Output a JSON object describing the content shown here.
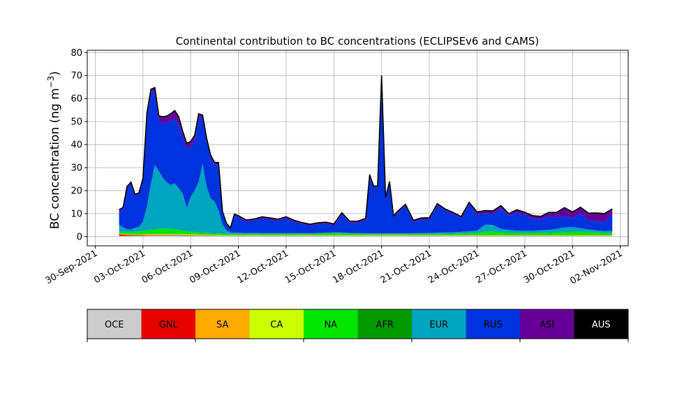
{
  "chart_data": {
    "type": "area",
    "stacked": true,
    "title": "Continental contribution to BC concentrations (ECLIPSEv6 and CAMS)",
    "ylabel_main": "BC concentration (ng m",
    "ylabel_exp": "−3",
    "ylabel_close": ")",
    "ylim": [
      -4,
      81
    ],
    "xlim": [
      "2021-09-29T12:00",
      "2021-11-02T12:00"
    ],
    "yticks": [
      0,
      10,
      20,
      30,
      40,
      50,
      60,
      70,
      80
    ],
    "ytick_labels": [
      "0",
      "10",
      "20",
      "30",
      "40",
      "50",
      "60",
      "70",
      "80"
    ],
    "xticks": [
      "2021-09-30",
      "2021-10-03",
      "2021-10-06",
      "2021-10-09",
      "2021-10-12",
      "2021-10-15",
      "2021-10-18",
      "2021-10-21",
      "2021-10-24",
      "2021-10-27",
      "2021-10-30",
      "2021-11-02"
    ],
    "xtick_labels": [
      "30-Sep-2021",
      "03-Oct-2021",
      "06-Oct-2021",
      "09-Oct-2021",
      "12-Oct-2021",
      "15-Oct-2021",
      "18-Oct-2021",
      "21-Oct-2021",
      "24-Oct-2021",
      "27-Oct-2021",
      "30-Oct-2021",
      "02-Nov-2021"
    ],
    "grid": true,
    "legend_position": "below",
    "series": [
      {
        "name": "OCE",
        "color": "#cccccc"
      },
      {
        "name": "GNL",
        "color": "#e60000"
      },
      {
        "name": "SA",
        "color": "#ffaa00"
      },
      {
        "name": "CA",
        "color": "#ccff00"
      },
      {
        "name": "NA",
        "color": "#00e600"
      },
      {
        "name": "AFR",
        "color": "#009900"
      },
      {
        "name": "EUR",
        "color": "#00a5bf"
      },
      {
        "name": "RUS",
        "color": "#0033dd"
      },
      {
        "name": "ASI",
        "color": "#660099"
      },
      {
        "name": "AUS",
        "color": "#000000"
      }
    ],
    "x": [
      "2021-10-01T12:00",
      "2021-10-01T18:00",
      "2021-10-02T00:00",
      "2021-10-02T06:00",
      "2021-10-02T12:00",
      "2021-10-02T18:00",
      "2021-10-03T00:00",
      "2021-10-03T06:00",
      "2021-10-03T12:00",
      "2021-10-03T18:00",
      "2021-10-04T00:00",
      "2021-10-04T06:00",
      "2021-10-04T12:00",
      "2021-10-04T18:00",
      "2021-10-05T00:00",
      "2021-10-05T06:00",
      "2021-10-05T12:00",
      "2021-10-05T18:00",
      "2021-10-06T00:00",
      "2021-10-06T06:00",
      "2021-10-06T12:00",
      "2021-10-06T18:00",
      "2021-10-07T00:00",
      "2021-10-07T06:00",
      "2021-10-07T12:00",
      "2021-10-07T18:00",
      "2021-10-08T00:00",
      "2021-10-08T06:00",
      "2021-10-08T12:00",
      "2021-10-08T18:00",
      "2021-10-09T00:00",
      "2021-10-09T12:00",
      "2021-10-10T00:00",
      "2021-10-10T12:00",
      "2021-10-11T00:00",
      "2021-10-11T12:00",
      "2021-10-12T00:00",
      "2021-10-12T12:00",
      "2021-10-13T00:00",
      "2021-10-13T12:00",
      "2021-10-14T00:00",
      "2021-10-14T12:00",
      "2021-10-15T00:00",
      "2021-10-15T12:00",
      "2021-10-16T00:00",
      "2021-10-16T12:00",
      "2021-10-17T00:00",
      "2021-10-17T06:00",
      "2021-10-17T12:00",
      "2021-10-17T18:00",
      "2021-10-18T00:00",
      "2021-10-18T06:00",
      "2021-10-18T12:00",
      "2021-10-18T18:00",
      "2021-10-19T00:00",
      "2021-10-19T12:00",
      "2021-10-20T00:00",
      "2021-10-20T12:00",
      "2021-10-21T00:00",
      "2021-10-21T12:00",
      "2021-10-22T00:00",
      "2021-10-22T12:00",
      "2021-10-23T00:00",
      "2021-10-23T12:00",
      "2021-10-24T00:00",
      "2021-10-24T12:00",
      "2021-10-25T00:00",
      "2021-10-25T12:00",
      "2021-10-26T00:00",
      "2021-10-26T12:00",
      "2021-10-27T00:00",
      "2021-10-27T12:00",
      "2021-10-28T00:00",
      "2021-10-28T12:00",
      "2021-10-29T00:00",
      "2021-10-29T12:00",
      "2021-10-30T00:00",
      "2021-10-30T12:00",
      "2021-10-31T00:00",
      "2021-10-31T12:00",
      "2021-11-01T00:00",
      "2021-11-01T12:00"
    ],
    "values": {
      "OCE": [
        0.3,
        0.3,
        0.3,
        0.3,
        0.4,
        0.4,
        0.4,
        0.5,
        0.5,
        0.5,
        0.5,
        0.5,
        0.5,
        0.5,
        0.5,
        0.5,
        0.4,
        0.4,
        0.4,
        0.3,
        0.3,
        0.3,
        0.3,
        0.3,
        0.3,
        0.3,
        0.3,
        0.3,
        0.3,
        0.3,
        0.3,
        0.3,
        0.3,
        0.3,
        0.3,
        0.3,
        0.3,
        0.3,
        0.3,
        0.3,
        0.3,
        0.3,
        0.3,
        0.3,
        0.3,
        0.3,
        0.3,
        0.3,
        0.3,
        0.3,
        0.3,
        0.3,
        0.3,
        0.3,
        0.3,
        0.3,
        0.3,
        0.3,
        0.3,
        0.3,
        0.3,
        0.3,
        0.3,
        0.3,
        0.3,
        0.3,
        0.3,
        0.3,
        0.3,
        0.3,
        0.3,
        0.3,
        0.3,
        0.3,
        0.3,
        0.3,
        0.3,
        0.3,
        0.3,
        0.3,
        0.3,
        0.3
      ],
      "GNL": [
        0.8,
        0.6,
        0.5,
        0.4,
        0.3,
        0.3,
        0.3,
        0.3,
        0.2,
        0.2,
        0.2,
        0.2,
        0.2,
        0.2,
        0.2,
        0.2,
        0.2,
        0.2,
        0.2,
        0.2,
        0.2,
        0.2,
        0.2,
        0.2,
        0.1,
        0.1,
        0.1,
        0.1,
        0.1,
        0.1,
        0.1,
        0.1,
        0.1,
        0.1,
        0.1,
        0.1,
        0.1,
        0.1,
        0.1,
        0.1,
        0.1,
        0.1,
        0.1,
        0.1,
        0.1,
        0.1,
        0.1,
        0.1,
        0.1,
        0.1,
        0.1,
        0.1,
        0.1,
        0.1,
        0.1,
        0.1,
        0.1,
        0.1,
        0.1,
        0.1,
        0.1,
        0.1,
        0.1,
        0.1,
        0.1,
        0.1,
        0.1,
        0.1,
        0.1,
        0.1,
        0.1,
        0.1,
        0.1,
        0.1,
        0.1,
        0.1,
        0.1,
        0.1,
        0.1,
        0.1,
        0.1,
        0.1
      ],
      "SA": [
        0.1,
        0.1,
        0.1,
        0.1,
        0.1,
        0.1,
        0.1,
        0.1,
        0.1,
        0.1,
        0.1,
        0.1,
        0.1,
        0.1,
        0.1,
        0.1,
        0.1,
        0.1,
        0.1,
        0.1,
        0.1,
        0.1,
        0.1,
        0.1,
        0.1,
        0.1,
        0.1,
        0.1,
        0.1,
        0.1,
        0.1,
        0.1,
        0.1,
        0.1,
        0.1,
        0.1,
        0.1,
        0.1,
        0.1,
        0.1,
        0.1,
        0.1,
        0.1,
        0.1,
        0.1,
        0.1,
        0.1,
        0.1,
        0.1,
        0.1,
        0.1,
        0.1,
        0.1,
        0.1,
        0.1,
        0.1,
        0.1,
        0.1,
        0.1,
        0.1,
        0.1,
        0.1,
        0.1,
        0.1,
        0.1,
        0.1,
        0.1,
        0.1,
        0.1,
        0.1,
        0.1,
        0.1,
        0.1,
        0.1,
        0.1,
        0.1,
        0.1,
        0.1,
        0.1,
        0.1,
        0.1,
        0.1
      ],
      "CA": [
        0.2,
        0.2,
        0.2,
        0.2,
        0.2,
        0.2,
        0.2,
        0.3,
        0.3,
        0.3,
        0.3,
        0.3,
        0.3,
        0.3,
        0.3,
        0.3,
        0.3,
        0.3,
        0.3,
        0.3,
        0.2,
        0.2,
        0.2,
        0.2,
        0.2,
        0.2,
        0.2,
        0.1,
        0.1,
        0.1,
        0.1,
        0.1,
        0.1,
        0.1,
        0.1,
        0.1,
        0.1,
        0.1,
        0.1,
        0.1,
        0.1,
        0.1,
        0.1,
        0.1,
        0.1,
        0.1,
        0.1,
        0.1,
        0.1,
        0.1,
        0.1,
        0.1,
        0.1,
        0.1,
        0.1,
        0.1,
        0.1,
        0.1,
        0.1,
        0.1,
        0.1,
        0.1,
        0.1,
        0.1,
        0.1,
        0.1,
        0.1,
        0.1,
        0.1,
        0.1,
        0.1,
        0.1,
        0.1,
        0.1,
        0.1,
        0.1,
        0.1,
        0.1,
        0.1,
        0.1,
        0.1,
        0.1
      ],
      "NA": [
        0.6,
        0.8,
        1.0,
        1.0,
        1.2,
        1.2,
        1.5,
        1.6,
        1.8,
        2.0,
        2.2,
        2.3,
        2.4,
        2.2,
        2.0,
        1.8,
        1.6,
        1.4,
        1.2,
        1.0,
        0.9,
        0.8,
        0.8,
        0.7,
        0.6,
        0.6,
        0.5,
        0.5,
        0.5,
        0.5,
        0.5,
        0.5,
        0.5,
        0.5,
        0.5,
        0.5,
        0.5,
        0.5,
        0.5,
        0.5,
        0.6,
        0.7,
        0.8,
        0.8,
        0.6,
        0.6,
        0.5,
        0.5,
        0.5,
        0.5,
        0.5,
        0.5,
        0.5,
        0.5,
        0.5,
        0.5,
        0.5,
        0.5,
        0.5,
        0.5,
        0.6,
        0.6,
        0.7,
        0.8,
        0.9,
        1.5,
        1.6,
        1.2,
        1.0,
        0.9,
        0.9,
        0.9,
        1.0,
        1.0,
        1.2,
        1.3,
        1.4,
        1.5,
        1.4,
        1.2,
        1.0,
        1.0
      ],
      "AFR": [
        0.1,
        0.1,
        0.1,
        0.1,
        0.1,
        0.1,
        0.1,
        0.1,
        0.1,
        0.1,
        0.1,
        0.1,
        0.1,
        0.1,
        0.1,
        0.1,
        0.1,
        0.1,
        0.1,
        0.1,
        0.1,
        0.1,
        0.1,
        0.1,
        0.1,
        0.1,
        0.1,
        0.1,
        0.1,
        0.1,
        0.1,
        0.1,
        0.1,
        0.1,
        0.1,
        0.1,
        0.1,
        0.1,
        0.1,
        0.1,
        0.1,
        0.1,
        0.1,
        0.1,
        0.1,
        0.1,
        0.1,
        0.1,
        0.1,
        0.1,
        0.1,
        0.1,
        0.1,
        0.1,
        0.1,
        0.1,
        0.1,
        0.1,
        0.1,
        0.1,
        0.1,
        0.1,
        0.1,
        0.1,
        0.1,
        0.1,
        0.1,
        0.1,
        0.1,
        0.1,
        0.1,
        0.1,
        0.1,
        0.1,
        0.1,
        0.1,
        0.1,
        0.1,
        0.1,
        0.1,
        0.1,
        0.1
      ],
      "EUR": [
        3.0,
        2.0,
        1.0,
        1.0,
        1.5,
        2.0,
        4.0,
        10.0,
        20.0,
        28.0,
        25.0,
        22.0,
        20.0,
        19.0,
        20.0,
        18.0,
        16.0,
        10.0,
        15.0,
        18.0,
        22.0,
        30.0,
        20.0,
        15.0,
        14.0,
        10.0,
        4.0,
        1.5,
        0.7,
        0.5,
        0.5,
        0.4,
        0.4,
        0.3,
        0.3,
        0.3,
        0.3,
        0.3,
        0.3,
        0.2,
        0.3,
        0.3,
        0.4,
        0.3,
        0.3,
        0.3,
        0.2,
        0.2,
        0.2,
        0.2,
        0.2,
        0.2,
        0.2,
        0.2,
        0.2,
        0.2,
        0.3,
        0.3,
        0.4,
        0.5,
        0.6,
        0.6,
        0.7,
        0.8,
        1.0,
        3.0,
        2.8,
        1.5,
        1.2,
        1.0,
        0.9,
        0.9,
        1.0,
        1.2,
        1.5,
        2.0,
        2.0,
        1.5,
        1.0,
        0.8,
        0.7,
        0.8
      ],
      "RUS": [
        6.0,
        8.0,
        18.0,
        20.0,
        14.0,
        14.0,
        18.0,
        40.0,
        40.0,
        32.0,
        22.0,
        24.0,
        26.0,
        28.0,
        28.0,
        28.0,
        25.0,
        26.0,
        22.0,
        22.0,
        28.0,
        20.0,
        20.0,
        18.0,
        16.0,
        20.0,
        5.0,
        2.5,
        1.4,
        7.5,
        6.8,
        5.0,
        5.5,
        6.5,
        6.0,
        5.5,
        6.5,
        5.0,
        4.0,
        3.5,
        3.8,
        4.0,
        3.0,
        8.0,
        4.5,
        4.5,
        6.0,
        25.0,
        20.0,
        20.0,
        68.0,
        15.0,
        22.0,
        7.0,
        9.0,
        12.0,
        5.0,
        6.0,
        6.0,
        12.0,
        9.5,
        8.0,
        6.0,
        12.0,
        7.0,
        5.0,
        5.0,
        9.0,
        6.0,
        8.0,
        7.0,
        5.5,
        5.0,
        6.0,
        5.0,
        5.0,
        4.0,
        6.5,
        4.0,
        4.0,
        4.0,
        7.5
      ],
      "ASI": [
        0.5,
        0.5,
        0.5,
        0.5,
        0.5,
        0.6,
        0.7,
        0.8,
        1.0,
        1.5,
        2.0,
        2.5,
        2.7,
        3.0,
        3.5,
        3.0,
        2.0,
        2.0,
        2.0,
        2.0,
        1.5,
        1.0,
        1.0,
        0.8,
        0.8,
        0.7,
        0.5,
        0.5,
        0.4,
        0.5,
        0.5,
        0.5,
        0.5,
        0.5,
        0.5,
        0.5,
        0.5,
        0.5,
        0.5,
        0.4,
        0.5,
        0.5,
        0.5,
        0.5,
        0.5,
        0.5,
        0.5,
        0.5,
        0.5,
        0.5,
        0.5,
        0.5,
        0.5,
        0.5,
        0.5,
        0.5,
        0.5,
        0.5,
        0.5,
        0.5,
        0.5,
        0.5,
        0.5,
        0.5,
        1.0,
        1.0,
        1.0,
        1.0,
        1.0,
        1.0,
        1.0,
        1.0,
        1.0,
        1.5,
        2.0,
        3.5,
        2.5,
        2.5,
        3.0,
        3.5,
        3.5,
        2.0
      ],
      "AUS": [
        0.1,
        0.1,
        0.1,
        0.1,
        0.1,
        0.1,
        0.1,
        0.1,
        0.1,
        0.1,
        0.1,
        0.1,
        0.1,
        0.1,
        0.1,
        0.1,
        0.1,
        0.1,
        0.1,
        0.1,
        0.1,
        0.1,
        0.1,
        0.1,
        0.1,
        0.1,
        0.1,
        0.1,
        0.1,
        0.1,
        0.1,
        0.1,
        0.1,
        0.1,
        0.1,
        0.1,
        0.1,
        0.1,
        0.1,
        0.1,
        0.1,
        0.1,
        0.1,
        0.1,
        0.1,
        0.1,
        0.1,
        0.1,
        0.1,
        0.1,
        0.1,
        0.1,
        0.1,
        0.1,
        0.1,
        0.1,
        0.1,
        0.1,
        0.1,
        0.1,
        0.1,
        0.1,
        0.1,
        0.1,
        0.1,
        0.1,
        0.1,
        0.1,
        0.1,
        0.1,
        0.1,
        0.1,
        0.1,
        0.1,
        0.1,
        0.1,
        0.1,
        0.1,
        0.1,
        0.1,
        0.1,
        0.1
      ]
    }
  }
}
